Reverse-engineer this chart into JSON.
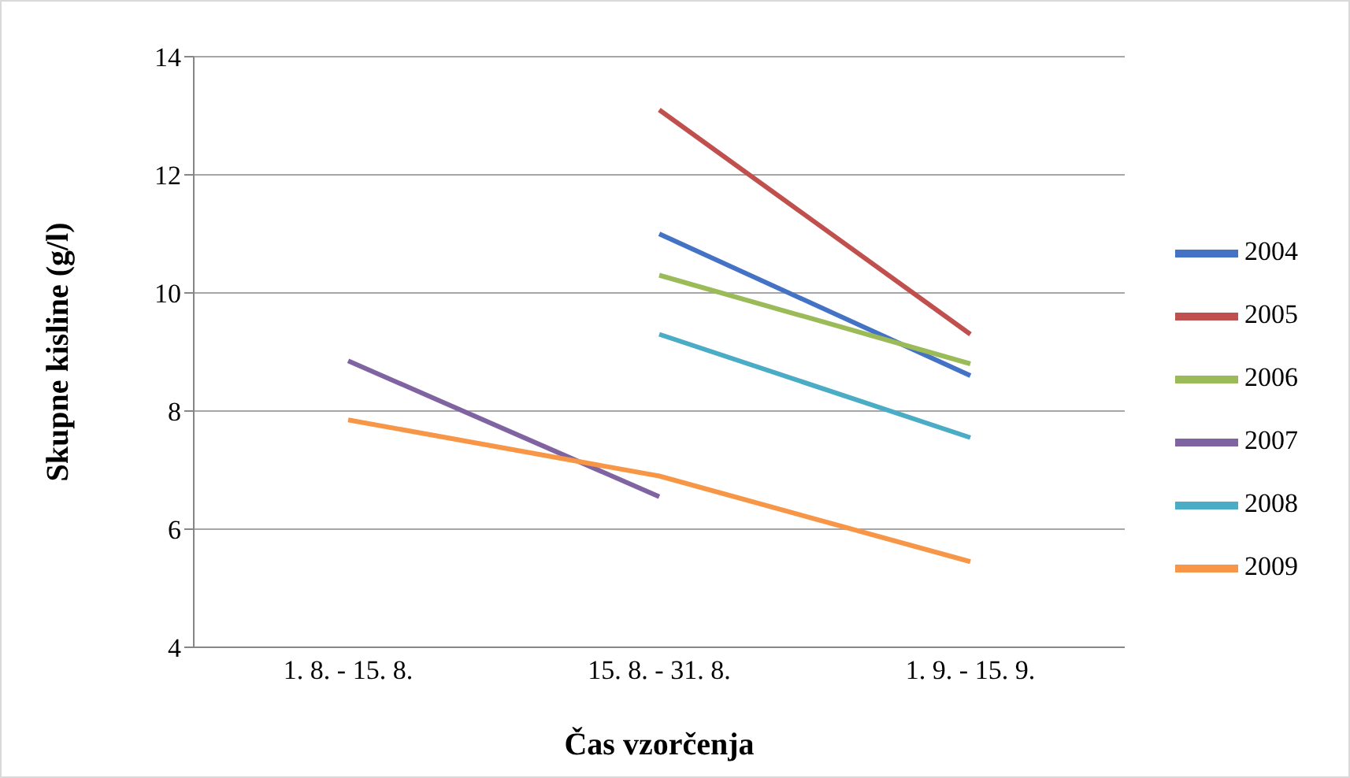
{
  "chart_data": {
    "type": "line",
    "xlabel": "Čas vzorčenja",
    "ylabel": "Skupne kisline (g/l)",
    "categories": [
      "1. 8. - 15. 8.",
      "15. 8. - 31. 8.",
      "1. 9. - 15. 9."
    ],
    "series": [
      {
        "name": "2004",
        "color": "#4472c4",
        "values": [
          null,
          11.0,
          8.6
        ]
      },
      {
        "name": "2005",
        "color": "#c0504d",
        "values": [
          null,
          13.1,
          9.3
        ]
      },
      {
        "name": "2006",
        "color": "#9bbb59",
        "values": [
          null,
          10.3,
          8.8
        ]
      },
      {
        "name": "2007",
        "color": "#8064a2",
        "values": [
          8.85,
          6.55,
          null
        ]
      },
      {
        "name": "2008",
        "color": "#4bacc6",
        "values": [
          null,
          9.3,
          7.55
        ]
      },
      {
        "name": "2009",
        "color": "#f79646",
        "values": [
          7.85,
          6.9,
          5.45
        ]
      }
    ],
    "ylim": [
      4,
      14
    ],
    "yticks": [
      4,
      6,
      8,
      10,
      12,
      14
    ],
    "grid": "y",
    "legend": "right",
    "marker": "none",
    "line_style": "solid"
  }
}
